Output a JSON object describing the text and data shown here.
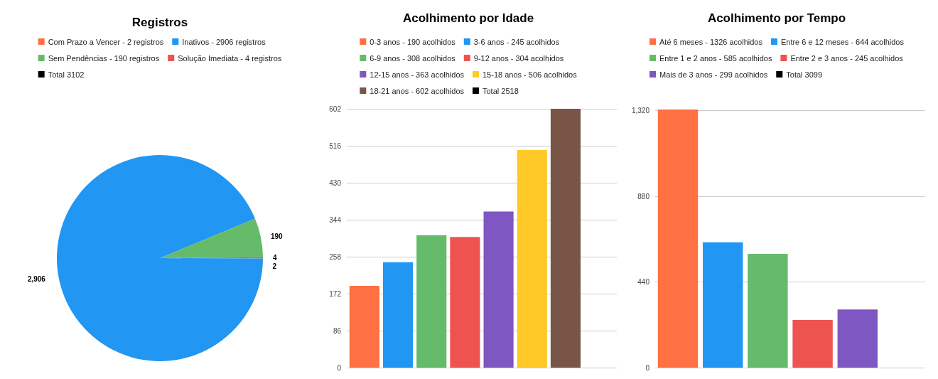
{
  "chart_data": [
    {
      "type": "pie",
      "title": "Registros",
      "categories": [
        "Com Prazo a Vencer - 2 registros",
        "Inativos - 2906 registros",
        "Sem Pendências - 190 registros",
        "Solução Imediata - 4 registros",
        "Total 3102"
      ],
      "values": [
        2,
        2906,
        190,
        4,
        null
      ],
      "colors": [
        "#ff7043",
        "#2196f3",
        "#66bb6a",
        "#ef5350",
        "#000000"
      ],
      "value_labels": [
        "2",
        "2,906",
        "190",
        "4",
        null
      ],
      "legend": "top"
    },
    {
      "type": "bar",
      "title": "Acolhimento por Idade",
      "categories": [
        null
      ],
      "series": [
        {
          "name": "0-3 anos - 190 acolhidos",
          "color": "#ff7043",
          "values": [
            190
          ]
        },
        {
          "name": "3-6 anos - 245 acolhidos",
          "color": "#2196f3",
          "values": [
            245
          ]
        },
        {
          "name": "6-9 anos - 308 acolhidos",
          "color": "#66bb6a",
          "values": [
            308
          ]
        },
        {
          "name": "9-12 anos - 304 acolhidos",
          "color": "#ef5350",
          "values": [
            304
          ]
        },
        {
          "name": "12-15 anos - 363 acolhidos",
          "color": "#7e57c2",
          "values": [
            363
          ]
        },
        {
          "name": "15-18 anos - 506 acolhidos",
          "color": "#ffca28",
          "values": [
            506
          ]
        },
        {
          "name": "18-21 anos - 602 acolhidos",
          "color": "#795548",
          "values": [
            602
          ]
        },
        {
          "name": "Total 2518",
          "color": "#000000",
          "values": [
            0
          ]
        }
      ],
      "ylim": [
        0,
        602
      ],
      "yticks": [
        0,
        86,
        172,
        258,
        344,
        430,
        516,
        602
      ],
      "grid": "y",
      "legend": "top"
    },
    {
      "type": "bar",
      "title": "Acolhimento por Tempo",
      "categories": [
        null
      ],
      "series": [
        {
          "name": "Até 6 meses - 1326 acolhidos",
          "color": "#ff7043",
          "values": [
            1326
          ]
        },
        {
          "name": "Entre 6 e 12 meses - 644 acolhidos",
          "color": "#2196f3",
          "values": [
            644
          ]
        },
        {
          "name": "Entre 1 e 2 anos - 585 acolhidos",
          "color": "#66bb6a",
          "values": [
            585
          ]
        },
        {
          "name": "Entre 2 e 3 anos - 245 acolhidos",
          "color": "#ef5350",
          "values": [
            245
          ]
        },
        {
          "name": "Mais de 3 anos - 299 acolhidos",
          "color": "#7e57c2",
          "values": [
            299
          ]
        },
        {
          "name": "Total 3099",
          "color": "#000000",
          "values": [
            null
          ]
        }
      ],
      "ylim": [
        0,
        1330
      ],
      "yticks": [
        0,
        440,
        880,
        {
          "value": 1320,
          "label": "1,320"
        }
      ],
      "grid": "y",
      "legend": "top"
    }
  ]
}
